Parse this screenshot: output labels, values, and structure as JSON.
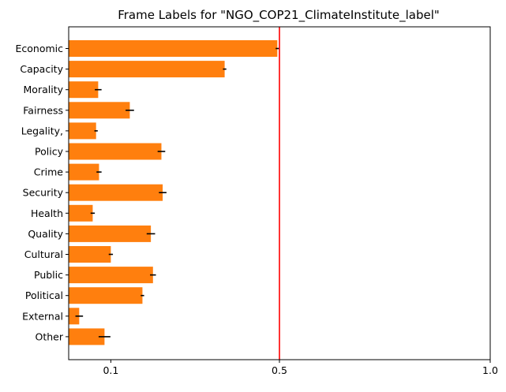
{
  "chart_data": {
    "type": "bar",
    "orientation": "horizontal",
    "title": "Frame Labels for \"NGO_COP21_ClimateInstitute_label\"",
    "xlabel": "",
    "ylabel": "",
    "categories": [
      "Economic",
      "Capacity",
      "Morality",
      "Fairness",
      "Legality,",
      "Policy",
      "Crime",
      "Security",
      "Health",
      "Quality",
      "Cultural",
      "Public",
      "Political",
      "External",
      "Other"
    ],
    "values": [
      0.495,
      0.37,
      0.07,
      0.145,
      0.065,
      0.22,
      0.072,
      0.223,
      0.057,
      0.195,
      0.1,
      0.2,
      0.175,
      0.025,
      0.085
    ],
    "errors": [
      0.004,
      0.004,
      0.008,
      0.01,
      0.004,
      0.009,
      0.006,
      0.009,
      0.005,
      0.01,
      0.005,
      0.007,
      0.004,
      0.009,
      0.014
    ],
    "x_ticks": [
      0.1,
      0.5,
      1.0
    ],
    "x_tick_labels": [
      "0.1",
      "0.5",
      "1.0"
    ],
    "xlim": [
      0,
      1.0
    ],
    "reference_line": 0.5,
    "grid": false,
    "colors": {
      "bar": "#ff7f0e",
      "error_bar": "#000000",
      "reference_line": "#ff0000",
      "axes": "#000000"
    }
  }
}
